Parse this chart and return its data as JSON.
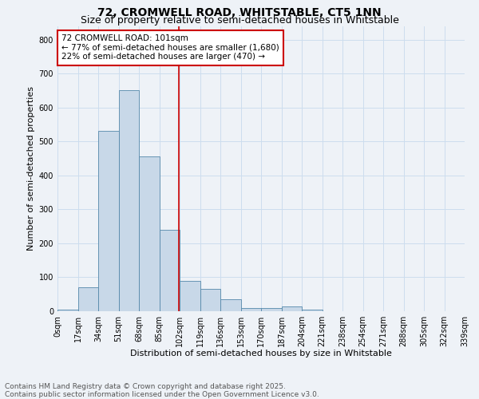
{
  "title1": "72, CROMWELL ROAD, WHITSTABLE, CT5 1NN",
  "title2": "Size of property relative to semi-detached houses in Whitstable",
  "xlabel": "Distribution of semi-detached houses by size in Whitstable",
  "ylabel": "Number of semi-detached properties",
  "bin_labels": [
    "0sqm",
    "17sqm",
    "34sqm",
    "51sqm",
    "68sqm",
    "85sqm",
    "102sqm",
    "119sqm",
    "136sqm",
    "153sqm",
    "170sqm",
    "187sqm",
    "204sqm",
    "221sqm",
    "238sqm",
    "254sqm",
    "271sqm",
    "288sqm",
    "305sqm",
    "322sqm",
    "339sqm"
  ],
  "bar_heights": [
    5,
    70,
    530,
    650,
    455,
    240,
    90,
    65,
    35,
    10,
    10,
    15,
    5,
    0,
    0,
    0,
    0,
    0,
    0,
    0
  ],
  "bar_color": "#c8d8e8",
  "bar_edgecolor": "#5588aa",
  "bar_width": 1.0,
  "vline_color": "#cc0000",
  "annotation_title": "72 CROMWELL ROAD: 101sqm",
  "annotation_line1": "← 77% of semi-detached houses are smaller (1,680)",
  "annotation_line2": "22% of semi-detached houses are larger (470) →",
  "annotation_box_color": "#ffffff",
  "annotation_box_edgecolor": "#cc0000",
  "ylim": [
    0,
    840
  ],
  "yticks": [
    0,
    100,
    200,
    300,
    400,
    500,
    600,
    700,
    800
  ],
  "grid_color": "#ccddee",
  "background_color": "#eef2f7",
  "footer1": "Contains HM Land Registry data © Crown copyright and database right 2025.",
  "footer2": "Contains public sector information licensed under the Open Government Licence v3.0.",
  "title_fontsize": 10,
  "subtitle_fontsize": 9,
  "axis_label_fontsize": 8,
  "tick_fontsize": 7,
  "footer_fontsize": 6.5,
  "annot_fontsize": 7.5
}
